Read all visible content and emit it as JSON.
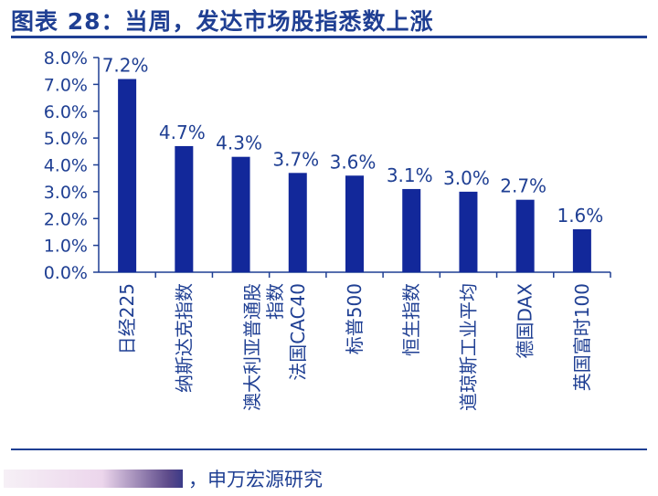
{
  "header": {
    "title": "图表 28：当周，发达市场股指悉数上涨"
  },
  "source": {
    "text": "，申万宏源研究"
  },
  "colors": {
    "accent": "#1f3f93",
    "bar": "#12289a"
  },
  "chart_data": {
    "type": "bar",
    "title": "",
    "xlabel": "",
    "ylabel": "",
    "ylim": [
      0,
      8
    ],
    "yticks": [
      "0.0%",
      "1.0%",
      "2.0%",
      "3.0%",
      "4.0%",
      "5.0%",
      "6.0%",
      "7.0%",
      "8.0%"
    ],
    "categories": [
      "日经225",
      "纳斯达克指数",
      "澳大利亚普通股指数",
      "法国CAC40",
      "标普500",
      "恒生指数",
      "道琼斯工业平均",
      "德国DAX",
      "英国富时100"
    ],
    "category_lines": [
      [
        "日经225"
      ],
      [
        "纳斯达克指数"
      ],
      [
        "澳大利亚普通股",
        "指数"
      ],
      [
        "法国CAC40"
      ],
      [
        "标普500"
      ],
      [
        "恒生指数"
      ],
      [
        "道琼斯工业平均"
      ],
      [
        "德国DAX"
      ],
      [
        "英国富时100"
      ]
    ],
    "values": [
      7.2,
      4.7,
      4.3,
      3.7,
      3.6,
      3.1,
      3.0,
      2.7,
      1.6
    ],
    "value_labels": [
      "7.2%",
      "4.7%",
      "4.3%",
      "3.7%",
      "3.6%",
      "3.1%",
      "3.0%",
      "2.7%",
      "1.6%"
    ],
    "grid": false,
    "legend": "none"
  }
}
